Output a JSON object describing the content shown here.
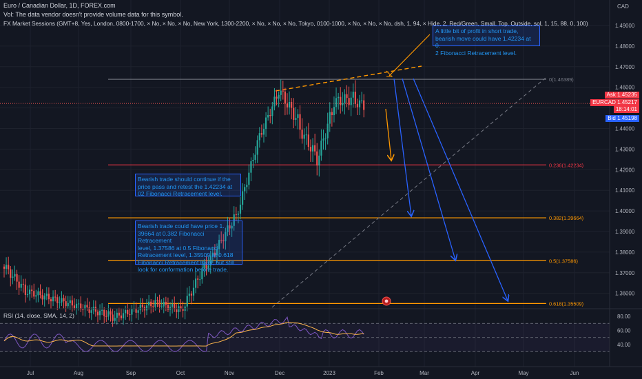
{
  "header": {
    "symbol_line": "Euro / Canadian Dollar, 1D, FOREX.com",
    "volume_note": "Vol: The data vendor doesn't provide volume data for this symbol.",
    "sessions_line": "FX Market Sessions (GMT+8, Yes, London, 0800-1700, × No, × No, × No, New York, 1300-2200, × No, × No, × No, Tokyo, 0100-1000, × No, × No, × No, dsh, 1, 94, × Hide, 2, Red/Green, Small, Top, Outside, sol, 1, 15, 88, 0, 100)"
  },
  "price_axis": {
    "currency": "CAD",
    "ticks": [
      "1.49000",
      "1.48000",
      "1.47000",
      "1.46000",
      "1.45000",
      "1.44000",
      "1.43000",
      "1.42000",
      "1.41000",
      "1.40000",
      "1.39000",
      "1.38000",
      "1.37000",
      "1.36000"
    ],
    "tags": {
      "ask_label": "Ask",
      "ask_value": "1.45235",
      "symbol_label": "EURCAD",
      "last_value": "1.45217",
      "countdown": "18:14:01",
      "bid_label": "Bid",
      "bid_value": "1.45198"
    }
  },
  "fib_levels": [
    {
      "label": "0(1.46389)",
      "price": 1.46389,
      "color": "#787b86"
    },
    {
      "label": "0.236(1.42234)",
      "price": 1.42234,
      "color": "#f23645"
    },
    {
      "label": "0.382(1.39664)",
      "price": 1.39664,
      "color": "#ff9800"
    },
    {
      "label": "0.5(1.37586)",
      "price": 1.37586,
      "color": "#ff9800"
    },
    {
      "label": "0.618(1.35509)",
      "price": 1.35509,
      "color": "#ff9800"
    }
  ],
  "notes": {
    "top": "A little bit of profit in short trade,\nbearish move could have 1.42234 at 0.\n2 Fibonacci Retracement level.",
    "middle": "Bearish trade should continue if the\nprice pass and retest the 1.42234 at\n02 Fibonacci Retracement level.",
    "bottom": "Bearish trade could have price 1.\n39664 at 0.382 Fibonacci Retracement\nlevel, 1.37586 at 0.5 Fibonacci\nRetracement level, 1.35509 at 0.618\nFibonacci Retracement level, but still\nlook for conformation before trade."
  },
  "rsi": {
    "title": "RSI (14, close, SMA, 14, 2)",
    "ticks": [
      "80.00",
      "60.00",
      "40.00"
    ],
    "upper_band": 70,
    "lower_band": 30,
    "middle_band": 50
  },
  "time_axis": {
    "labels": [
      "Jul",
      "Aug",
      "Sep",
      "Oct",
      "Nov",
      "Dec",
      "2023",
      "Feb",
      "Mar",
      "Apr",
      "May",
      "Jun"
    ]
  },
  "colors": {
    "background": "#131722",
    "up": "#26a69a",
    "down": "#ef5350",
    "fib_zero": "#787b86",
    "fib_red": "#f23645",
    "fib_orange": "#ff9800",
    "arrow_blue": "#2962ff",
    "rsi_line": "#7e57c2",
    "rsi_ma": "#ffb74d"
  },
  "chart_data": {
    "type": "candlestick",
    "symbol": "EURCAD",
    "timeframe": "1D",
    "ylim": [
      1.353,
      1.496
    ],
    "rsi_ylim": [
      22,
      88
    ],
    "candles": [],
    "rsi_values": [],
    "rsi_ma_values": []
  }
}
